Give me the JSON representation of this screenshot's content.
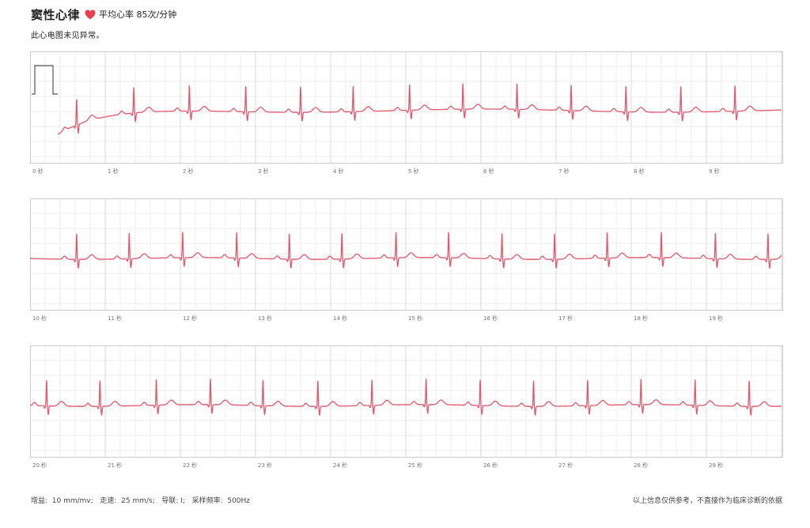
{
  "header": {
    "rhythm_label": "窦性心律",
    "heart_rate_text": "平均心率 85次/分钟",
    "conclusion": "此心电图未见异常。",
    "heart_icon": "heart-icon",
    "heart_color": "#e8404f"
  },
  "strips": [
    {
      "tick_labels": [
        "0 秒",
        "1 秒",
        "2 秒",
        "3 秒",
        "4 秒",
        "5 秒",
        "6 秒",
        "7 秒",
        "8 秒",
        "9 秒"
      ]
    },
    {
      "tick_labels": [
        "10 秒",
        "11 秒",
        "12 秒",
        "13 秒",
        "14 秒",
        "15 秒",
        "16 秒",
        "17 秒",
        "18 秒",
        "19 秒"
      ]
    },
    {
      "tick_labels": [
        "20 秒",
        "21 秒",
        "22 秒",
        "23 秒",
        "24 秒",
        "25 秒",
        "26 秒",
        "27 秒",
        "28 秒",
        "29 秒"
      ]
    }
  ],
  "footer": {
    "gain_label": "增益:",
    "gain_value": "10 mm/mv;",
    "speed_label": "走速:",
    "speed_value": "25 mm/s;",
    "lead_label": "导联:",
    "lead_value": "I;",
    "sample_label": "采样频率:",
    "sample_value": "500Hz",
    "disclaimer": "以上信息仅供参考，不直接作为临床诊断的依据"
  },
  "colors": {
    "trace": "#e3576a",
    "grid_minor": "#eeeeee",
    "grid_major": "#d9d9d9",
    "border": "#cccccc"
  },
  "chart_data": {
    "type": "line",
    "seconds_per_strip": 10,
    "strip_count": 3,
    "beats_sec": [
      [
        0.62,
        1.38,
        2.12,
        2.87,
        3.6,
        4.3,
        5.05,
        5.76,
        6.48,
        7.2,
        7.93,
        8.66,
        9.38
      ],
      [
        0.62,
        1.32,
        2.03,
        2.75,
        3.45,
        4.15,
        4.87,
        5.57,
        6.28,
        6.98,
        7.68,
        8.4,
        9.12,
        9.82
      ],
      [
        0.22,
        0.93,
        1.68,
        2.4,
        3.1,
        3.83,
        4.55,
        5.27,
        5.99,
        6.7,
        7.42,
        8.13,
        8.85,
        9.57
      ]
    ]
  }
}
